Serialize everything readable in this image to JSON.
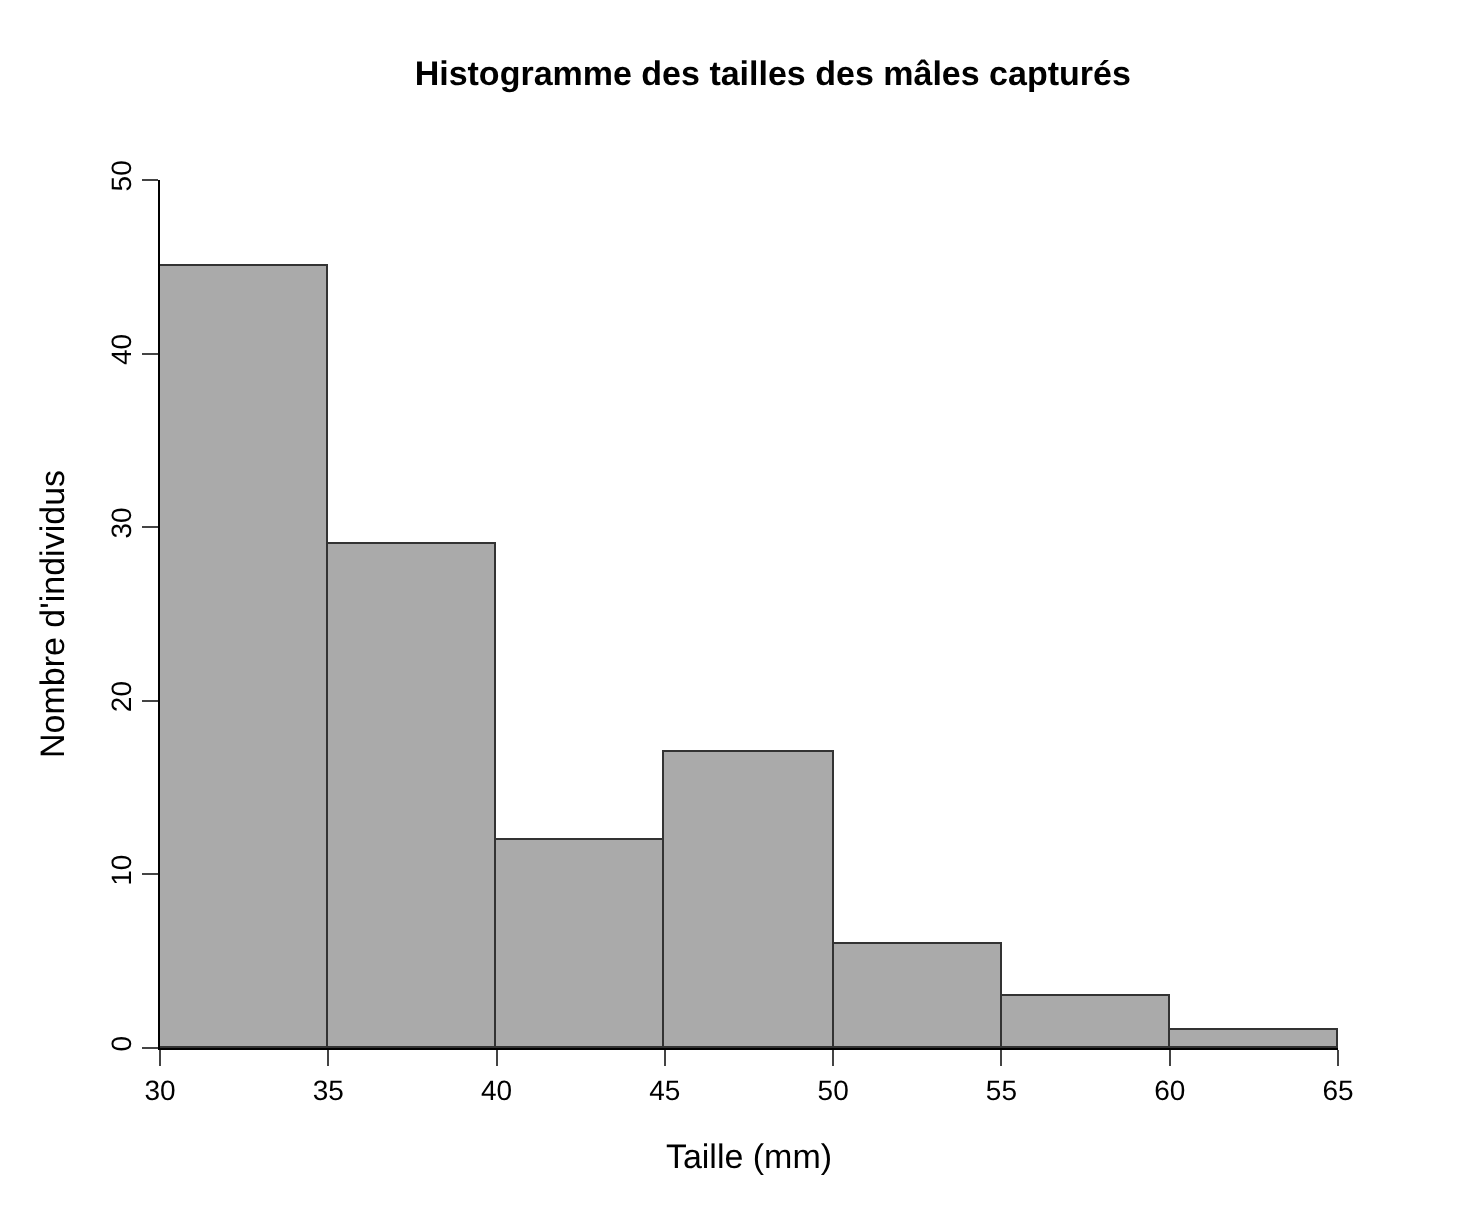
{
  "chart_data": {
    "type": "histogram",
    "title": "Histogramme des tailles des mâles capturés",
    "xlabel": "Taille (mm)",
    "ylabel": "Nombre d'individus",
    "bins": [
      30,
      35,
      40,
      45,
      50,
      55,
      60,
      65
    ],
    "values": [
      45,
      29,
      12,
      17,
      6,
      3,
      1
    ],
    "color": "#aaaaaa",
    "xlim": [
      30,
      65
    ],
    "xticks": [
      30,
      35,
      40,
      45,
      50,
      55,
      60,
      65
    ],
    "ylim": [
      0,
      50
    ],
    "yticks": [
      0,
      10,
      20,
      30,
      40,
      50
    ],
    "tick_labels": "xy"
  }
}
